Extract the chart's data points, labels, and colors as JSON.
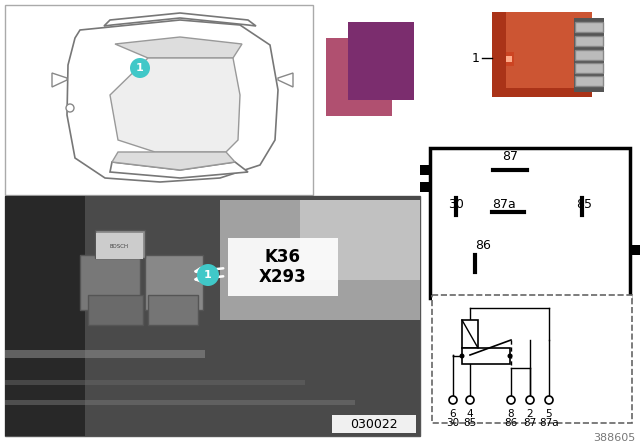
{
  "bg_color": "#ffffff",
  "relay_orange_color": "#cc5533",
  "color_square1": "#b05070",
  "color_square2": "#7b2d6e",
  "callout_color": "#40c8c8",
  "callout_text_color": "#ffffff",
  "photo_label": "030022",
  "diagram_number": "388605",
  "k36_text": "K36",
  "x293_text": "X293",
  "pin_labels": [
    "87",
    "30",
    "87a",
    "85",
    "86"
  ],
  "schematic_labels_top": [
    "6",
    "4",
    "8",
    "2",
    "5"
  ],
  "schematic_labels_bot": [
    "30",
    "85",
    "86",
    "87",
    "87a"
  ]
}
